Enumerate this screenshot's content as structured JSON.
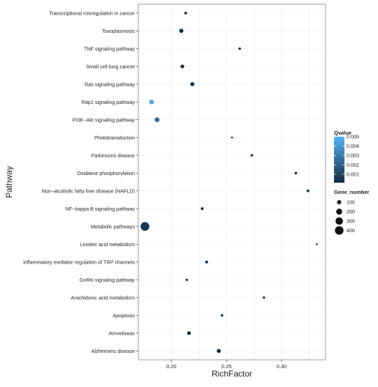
{
  "chart_data": {
    "type": "scatter",
    "xlabel": "RichFactor",
    "ylabel": "Pathway",
    "xlim": [
      0.17,
      0.34
    ],
    "xticks": [
      0.2,
      0.25,
      0.3
    ],
    "xtick_labels": [
      "0.20",
      "0.25",
      "0.30"
    ],
    "grid": "on",
    "legend_placement": "right",
    "categories": [
      "Transcriptional misregulation in cancer",
      "Toxoplasmosis",
      "TNF signaling pathway",
      "Small cell lung cancer",
      "Ras signaling pathway",
      "Rap1 signaling pathway",
      "PI3K−Akt signaling pathway",
      "Phototransduction",
      "Parkinsons disease",
      "Oxidative phosphorylation",
      "Non−alcoholic fatty liver disease (NAFLD)",
      "NF−kappa B signaling pathway",
      "Metabolic pathways",
      "Linoleic acid metabolism",
      "Inflammatory mediator regulation of TRP channels",
      "GnRH signaling pathway",
      "Arachidonic acid metabolism",
      "Apoptosis",
      "Amoebiasis",
      "Alzheimers disease"
    ],
    "points": [
      {
        "pathway": "Transcriptional misregulation in cancer",
        "rich_factor": 0.213,
        "qvalue": 0.0002,
        "gene_number": 40
      },
      {
        "pathway": "Toxoplasmosis",
        "rich_factor": 0.209,
        "qvalue": 0.0001,
        "gene_number": 95
      },
      {
        "pathway": "TNF signaling pathway",
        "rich_factor": 0.262,
        "qvalue": 0.0001,
        "gene_number": 35
      },
      {
        "pathway": "Small cell lung cancer",
        "rich_factor": 0.21,
        "qvalue": 0.0001,
        "gene_number": 75
      },
      {
        "pathway": "Ras signaling pathway",
        "rich_factor": 0.219,
        "qvalue": 0.0001,
        "gene_number": 90
      },
      {
        "pathway": "Rap1 signaling pathway",
        "rich_factor": 0.182,
        "qvalue": 0.0045,
        "gene_number": 120
      },
      {
        "pathway": "PI3K−Akt signaling pathway",
        "rich_factor": 0.187,
        "qvalue": 0.0025,
        "gene_number": 130
      },
      {
        "pathway": "Phototransduction",
        "rich_factor": 0.255,
        "qvalue": 0.0002,
        "gene_number": 20
      },
      {
        "pathway": "Parkinsons disease",
        "rich_factor": 0.273,
        "qvalue": 0.0001,
        "gene_number": 35
      },
      {
        "pathway": "Oxidative phosphorylation",
        "rich_factor": 0.313,
        "qvalue": 0.0001,
        "gene_number": 35
      },
      {
        "pathway": "Non−alcoholic fatty liver disease (NAFLD)",
        "rich_factor": 0.324,
        "qvalue": 0.0001,
        "gene_number": 40
      },
      {
        "pathway": "NF−kappa B signaling pathway",
        "rich_factor": 0.228,
        "qvalue": 0.0001,
        "gene_number": 45
      },
      {
        "pathway": "Metabolic pathways",
        "rich_factor": 0.176,
        "qvalue": 0.0005,
        "gene_number": 410
      },
      {
        "pathway": "Linoleic acid metabolism",
        "rich_factor": 0.332,
        "qvalue": 0.0002,
        "gene_number": 18
      },
      {
        "pathway": "Inflammatory mediator regulation of TRP channels",
        "rich_factor": 0.232,
        "qvalue": 0.0001,
        "gene_number": 45
      },
      {
        "pathway": "GnRH signaling pathway",
        "rich_factor": 0.214,
        "qvalue": 0.0002,
        "gene_number": 30
      },
      {
        "pathway": "Arachidonic acid metabolism",
        "rich_factor": 0.284,
        "qvalue": 0.0001,
        "gene_number": 30
      },
      {
        "pathway": "Apoptosis",
        "rich_factor": 0.246,
        "qvalue": 0.0001,
        "gene_number": 35
      },
      {
        "pathway": "Amoebiasis",
        "rich_factor": 0.216,
        "qvalue": 0.0001,
        "gene_number": 75
      },
      {
        "pathway": "Alzheimers disease",
        "rich_factor": 0.243,
        "qvalue": 0.0001,
        "gene_number": 90
      }
    ],
    "color_legend": {
      "title": "Qvalue",
      "range": [
        0.0001,
        0.005
      ],
      "ticks": [
        "0.005",
        "0.004",
        "0.003",
        "0.002",
        "0.001"
      ],
      "tick_values": [
        0.005,
        0.004,
        0.003,
        0.002,
        0.001
      ],
      "low_color": "#132B43",
      "high_color": "#56B1F7"
    },
    "size_legend": {
      "title": "Gene_number",
      "labels": [
        "100",
        "200",
        "300",
        "400"
      ],
      "values": [
        100,
        200,
        300,
        400
      ]
    },
    "colors": {
      "panel_background": "#ffffff",
      "panel_border": "#7f7f7f",
      "grid": "#ebebeb"
    }
  }
}
